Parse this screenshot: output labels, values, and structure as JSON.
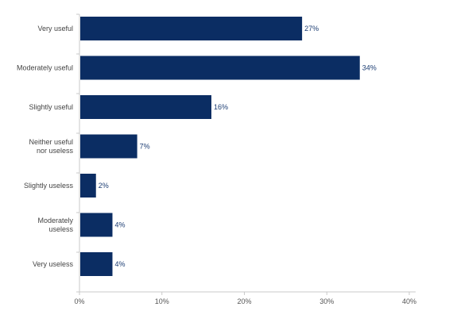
{
  "chart_data": {
    "type": "bar",
    "orientation": "horizontal",
    "title": "",
    "xlabel": "",
    "ylabel": "",
    "categories": [
      "Very useful",
      "Moderately useful",
      "Slightly useful",
      "Neither useful nor useless",
      "Slightly useless",
      "Moderately useless",
      "Very useless"
    ],
    "values": [
      27,
      34,
      16,
      7,
      2,
      4,
      4
    ],
    "value_labels": [
      "27%",
      "34%",
      "16%",
      "7%",
      "2%",
      "4%",
      "4%"
    ],
    "xlim": [
      0,
      40
    ],
    "x_ticks": [
      0,
      10,
      20,
      30,
      40
    ],
    "x_tick_labels": [
      "0%",
      "10%",
      "20%",
      "30%",
      "40%"
    ],
    "grid": false,
    "legend": "none",
    "colors": {
      "bar": "#0b2d63",
      "value_label": "#1c3d73",
      "category_label": "#444444",
      "axis": "#c9c9c9",
      "tick_label": "#555555"
    }
  }
}
